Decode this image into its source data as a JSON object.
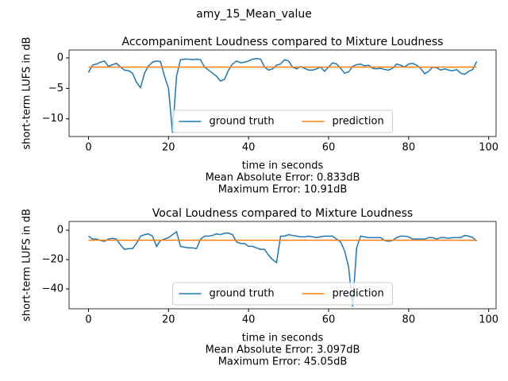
{
  "figure_title": "amy_15_Mean_value",
  "chart_data": [
    {
      "type": "line",
      "title": "Accompaniment Loudness compared to Mixture Loudness",
      "xlabel": "time in seconds",
      "ylabel": "short-term LUFS in dB",
      "annotations": [
        "Mean Absolute Error: 0.833dB",
        "Maximum Error: 10.91dB"
      ],
      "x": [
        0,
        1,
        2,
        3,
        4,
        5,
        6,
        7,
        8,
        9,
        10,
        11,
        12,
        13,
        14,
        15,
        16,
        17,
        18,
        19,
        20,
        21,
        22,
        23,
        24,
        25,
        26,
        27,
        28,
        29,
        30,
        31,
        32,
        33,
        34,
        35,
        36,
        37,
        38,
        39,
        40,
        41,
        42,
        43,
        44,
        45,
        46,
        47,
        48,
        49,
        50,
        51,
        52,
        53,
        54,
        55,
        56,
        57,
        58,
        59,
        60,
        61,
        62,
        63,
        64,
        65,
        66,
        67,
        68,
        69,
        70,
        71,
        72,
        73,
        74,
        75,
        76,
        77,
        78,
        79,
        80,
        81,
        82,
        83,
        84,
        85,
        86,
        87,
        88,
        89,
        90,
        91,
        92,
        93,
        94,
        95,
        96,
        97
      ],
      "series": [
        {
          "name": "ground truth",
          "color": "#1f77b4",
          "values": [
            -2.4,
            -1.2,
            -1,
            -0.7,
            -0.5,
            -1.4,
            -1.1,
            -0.9,
            -1.5,
            -2,
            -2.1,
            -2.5,
            -4,
            -4.9,
            -2.5,
            -1.3,
            -0.7,
            -0.5,
            -0.6,
            -3,
            -5,
            -12.3,
            -3,
            -0.3,
            -0.2,
            -0.2,
            -0.3,
            -0.2,
            -0.3,
            -1.5,
            -2,
            -2.5,
            -3,
            -3.8,
            -3.5,
            -2,
            -1,
            -0.5,
            -0.8,
            -0.7,
            -0.5,
            -0.2,
            -0.1,
            -0.2,
            -1.5,
            -2,
            -1.8,
            -1.2,
            -1,
            -0.3,
            -0.5,
            -1.5,
            -1.8,
            -1.4,
            -1.7,
            -2,
            -2,
            -1.8,
            -1.5,
            -2.2,
            -1.5,
            -0.8,
            -1,
            -1.7,
            -2.5,
            -2.3,
            -1.4,
            -1.1,
            -1,
            -1.3,
            -1.2,
            -1.7,
            -1.8,
            -1.7,
            -1.9,
            -2,
            -1.7,
            -1,
            -1.2,
            -1.5,
            -1,
            -0.9,
            -1.2,
            -1.7,
            -2.6,
            -2.2,
            -1.5,
            -1.6,
            -2,
            -1.8,
            -2,
            -2.1,
            -1.9,
            -2.5,
            -2.7,
            -2.2,
            -1.9,
            -0.6
          ]
        },
        {
          "name": "prediction",
          "color": "#ff7f0e",
          "values": [
            -1.5,
            -1.5,
            -1.5,
            -1.5,
            -1.5,
            -1.5,
            -1.5,
            -1.5,
            -1.5,
            -1.5,
            -1.5,
            -1.5,
            -1.5,
            -1.5,
            -1.5,
            -1.5,
            -1.5,
            -1.5,
            -1.5,
            -1.5,
            -1.5,
            -1.5,
            -1.5,
            -1.5,
            -1.5,
            -1.5,
            -1.5,
            -1.5,
            -1.5,
            -1.5,
            -1.5,
            -1.5,
            -1.5,
            -1.5,
            -1.5,
            -1.5,
            -1.5,
            -1.5,
            -1.5,
            -1.5,
            -1.5,
            -1.5,
            -1.5,
            -1.5,
            -1.5,
            -1.5,
            -1.5,
            -1.5,
            -1.5,
            -1.5,
            -1.5,
            -1.5,
            -1.5,
            -1.5,
            -1.5,
            -1.5,
            -1.5,
            -1.5,
            -1.5,
            -1.5,
            -1.5,
            -1.5,
            -1.5,
            -1.5,
            -1.5,
            -1.5,
            -1.5,
            -1.5,
            -1.5,
            -1.5,
            -1.5,
            -1.5,
            -1.5,
            -1.5,
            -1.5,
            -1.5,
            -1.5,
            -1.5,
            -1.5,
            -1.5,
            -1.5,
            -1.5,
            -1.5,
            -1.5,
            -1.5,
            -1.5,
            -1.5,
            -1.5,
            -1.5,
            -1.5,
            -1.5,
            -1.5,
            -1.5,
            -1.5,
            -1.5,
            -1.5,
            -1.5,
            -1.5
          ]
        }
      ],
      "xlim": [
        -4.85,
        101.85
      ],
      "xticks": [
        0,
        20,
        40,
        60,
        80,
        100
      ],
      "ylim": [
        -12.9,
        1.3
      ],
      "yticks": [
        0,
        {
          "value": -5,
          "label": "−5"
        },
        {
          "value": -10,
          "label": "−10"
        }
      ],
      "legend": "lower center"
    },
    {
      "type": "line",
      "title": "Vocal Loudness compared to Mixture Loudness",
      "xlabel": "time in seconds",
      "ylabel": "short-term LUFS in dB",
      "annotations": [
        "Mean Absolute Error: 3.097dB",
        "Maximum Error: 45.05dB"
      ],
      "x": [
        0,
        1,
        2,
        3,
        4,
        5,
        6,
        7,
        8,
        9,
        10,
        11,
        12,
        13,
        14,
        15,
        16,
        17,
        18,
        19,
        20,
        21,
        22,
        23,
        24,
        25,
        26,
        27,
        28,
        29,
        30,
        31,
        32,
        33,
        34,
        35,
        36,
        37,
        38,
        39,
        40,
        41,
        42,
        43,
        44,
        45,
        46,
        47,
        48,
        49,
        50,
        51,
        52,
        53,
        54,
        55,
        56,
        57,
        58,
        59,
        60,
        61,
        62,
        63,
        64,
        65,
        66,
        67,
        68,
        69,
        70,
        71,
        72,
        73,
        74,
        75,
        76,
        77,
        78,
        79,
        80,
        81,
        82,
        83,
        84,
        85,
        86,
        87,
        88,
        89,
        90,
        91,
        92,
        93,
        94,
        95,
        96,
        97
      ],
      "series": [
        {
          "name": "ground truth",
          "color": "#1f77b4",
          "values": [
            -4,
            -6,
            -6,
            -7,
            -7.5,
            -6,
            -5.5,
            -6,
            -10,
            -13,
            -12.5,
            -12.5,
            -9,
            -4,
            -3,
            -2.5,
            -4,
            -11,
            -7,
            -6,
            -5,
            -3,
            -1,
            -11,
            -11.5,
            -12,
            -12,
            -12.5,
            -6,
            -4,
            -4,
            -3.5,
            -2.5,
            -3,
            -2,
            -2,
            -3,
            -8,
            -9,
            -9,
            -11,
            -11,
            -12,
            -13,
            -13,
            -17,
            -20,
            -22,
            -4,
            -4,
            -3,
            -3.5,
            -4,
            -4.5,
            -4.5,
            -4,
            -4.5,
            -5,
            -4.5,
            -4,
            -4,
            -4,
            -6,
            -8,
            -14,
            -25,
            -52,
            -12,
            -4,
            -4.5,
            -5,
            -5,
            -5,
            -5,
            -7,
            -7.5,
            -7,
            -5,
            -4,
            -4,
            -4.5,
            -6,
            -6,
            -6,
            -6,
            -5,
            -5,
            -6,
            -5,
            -5,
            -5.5,
            -5,
            -5,
            -5,
            -3.5,
            -4,
            -5,
            -7.5
          ]
        },
        {
          "name": "prediction",
          "color": "#ff7f0e",
          "values": [
            -6.8,
            -6.8,
            -6.8,
            -6.8,
            -6.8,
            -6.8,
            -6.8,
            -6.8,
            -6.8,
            -6.8,
            -6.8,
            -6.8,
            -6.8,
            -6.8,
            -6.8,
            -6.8,
            -6.8,
            -6.8,
            -6.8,
            -6.8,
            -6.8,
            -6.8,
            -6.8,
            -6.8,
            -6.8,
            -6.8,
            -6.8,
            -6.8,
            -6.8,
            -6.8,
            -6.8,
            -6.8,
            -6.8,
            -6.8,
            -6.8,
            -6.8,
            -6.8,
            -6.8,
            -6.8,
            -6.8,
            -6.8,
            -6.8,
            -6.8,
            -6.8,
            -6.8,
            -6.8,
            -6.8,
            -6.8,
            -6.8,
            -6.8,
            -6.8,
            -6.8,
            -6.8,
            -6.8,
            -6.8,
            -6.8,
            -6.8,
            -6.8,
            -6.8,
            -6.8,
            -6.8,
            -6.8,
            -6.8,
            -6.8,
            -6.8,
            -6.8,
            -6.8,
            -6.8,
            -6.8,
            -6.8,
            -6.8,
            -6.8,
            -6.8,
            -6.8,
            -6.8,
            -6.8,
            -6.8,
            -6.8,
            -6.8,
            -6.8,
            -6.8,
            -6.8,
            -6.8,
            -6.8,
            -6.8,
            -6.8,
            -6.8,
            -6.8,
            -6.8,
            -6.8,
            -6.8,
            -6.8,
            -6.8,
            -6.8,
            -6.8,
            -6.8,
            -6.8,
            -6.8
          ]
        }
      ],
      "xlim": [
        -4.85,
        101.85
      ],
      "xticks": [
        0,
        20,
        40,
        60,
        80,
        100
      ],
      "ylim": [
        -53.5,
        6
      ],
      "yticks": [
        0,
        {
          "value": -20,
          "label": "−20"
        },
        {
          "value": -40,
          "label": "−40"
        }
      ],
      "legend": "lower center"
    }
  ]
}
